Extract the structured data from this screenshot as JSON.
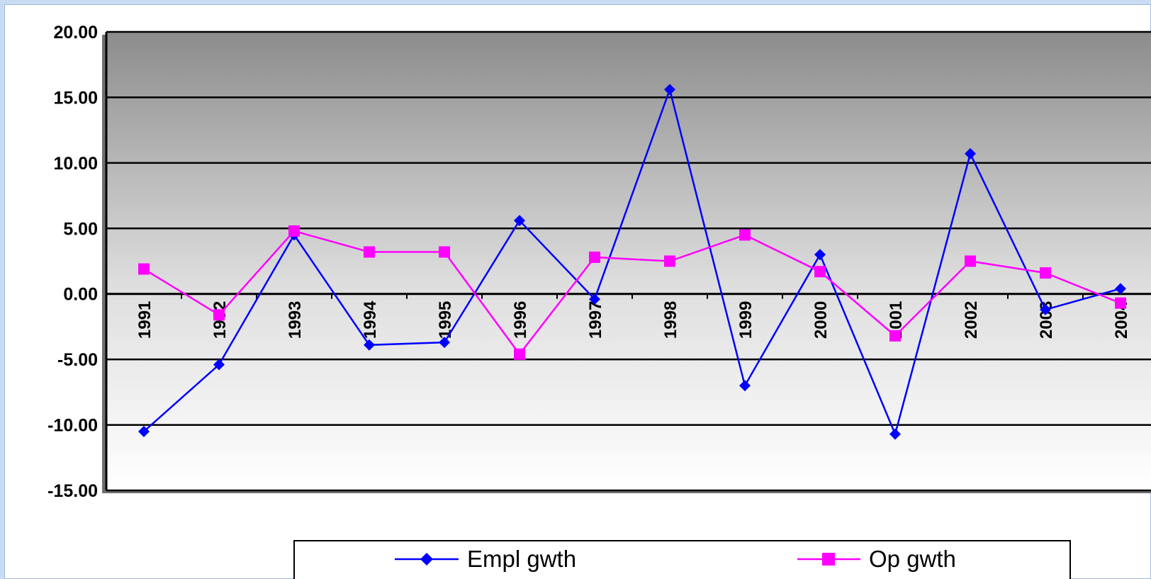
{
  "chart_data": {
    "type": "line",
    "categories": [
      "1991",
      "1992",
      "1993",
      "1994",
      "1995",
      "1996",
      "1997",
      "1998",
      "1999",
      "2000",
      "2001",
      "2002",
      "2003",
      "2004"
    ],
    "ylim": [
      -15,
      20
    ],
    "yticks": [
      "20.00",
      "15.00",
      "10.00",
      "5.00",
      "0.00",
      "-5.00",
      "-10.00",
      "-15.00"
    ],
    "grid": true,
    "legend_position": "bottom",
    "series": [
      {
        "name": "Empl gwth",
        "color": "#0000ff",
        "marker": "diamond",
        "values": [
          -10.5,
          -5.4,
          4.5,
          -3.9,
          -3.7,
          5.6,
          -0.4,
          15.6,
          -7.0,
          3.0,
          -10.7,
          10.7,
          -1.2,
          0.4
        ]
      },
      {
        "name": "Op gwth",
        "color": "#ff00ff",
        "marker": "square",
        "values": [
          1.9,
          -1.6,
          4.8,
          3.2,
          3.2,
          -4.6,
          2.8,
          2.5,
          4.5,
          1.7,
          -3.2,
          2.5,
          1.6,
          -0.7
        ]
      }
    ],
    "title": "",
    "xlabel": "",
    "ylabel": ""
  }
}
